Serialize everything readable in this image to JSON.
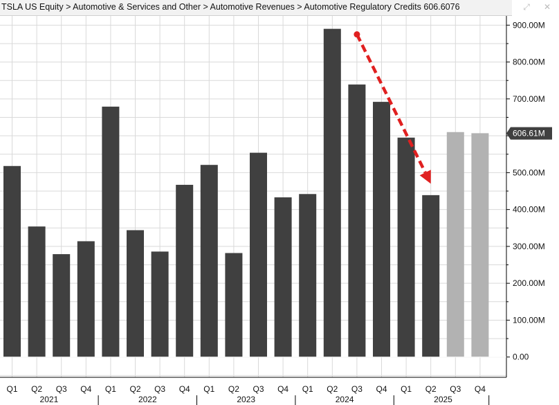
{
  "title_bar": {
    "title": "TSLA US Equity > Automotive & Services and Other > Automotive Revenues > Automotive Regulatory Credits 606.6076",
    "expand_icon": "expand-icon",
    "close_icon": "close-icon"
  },
  "last_value_label": "606.61M",
  "colors": {
    "actual_bar": "#404040",
    "estimate_bar": "#b2b2b2",
    "trend_arrow": "#e02020",
    "grid": "#d9d9d9",
    "last_value_badge": "#404040"
  },
  "chart_data": {
    "type": "bar",
    "quarter_labels": [
      "Q1",
      "Q2",
      "Q3",
      "Q4",
      "Q1",
      "Q2",
      "Q3",
      "Q4",
      "Q1",
      "Q2",
      "Q3",
      "Q4",
      "Q1",
      "Q2",
      "Q3",
      "Q4",
      "Q1",
      "Q2",
      "Q3",
      "Q4"
    ],
    "year_labels": [
      {
        "label": "2021",
        "from": 0,
        "to": 3
      },
      {
        "label": "2022",
        "from": 4,
        "to": 7
      },
      {
        "label": "2023",
        "from": 8,
        "to": 11
      },
      {
        "label": "2024",
        "from": 12,
        "to": 15
      },
      {
        "label": "2025",
        "from": 16,
        "to": 19
      }
    ],
    "series": [
      {
        "kind": "actual",
        "values": [
          518,
          354,
          279,
          314,
          679,
          344,
          286,
          467,
          521,
          282,
          554,
          433,
          442,
          890,
          739,
          692,
          595,
          439,
          null,
          null
        ]
      },
      {
        "kind": "estimate",
        "values": [
          null,
          null,
          null,
          null,
          null,
          null,
          null,
          null,
          null,
          null,
          null,
          null,
          null,
          null,
          null,
          null,
          null,
          null,
          610,
          607
        ]
      }
    ],
    "y_ticks": [
      "0.00",
      "100.00M",
      "200.00M",
      "300.00M",
      "400.00M",
      "500.00M",
      "600.00M",
      "700.00M",
      "800.00M",
      "900.00M"
    ],
    "y_tick_values": [
      0,
      100,
      200,
      300,
      400,
      500,
      600,
      700,
      800,
      900
    ],
    "ylim": [
      -55,
      925
    ],
    "last_value": 606.61,
    "trend_arrow": {
      "from_index": 14,
      "from_value": 875,
      "to_index": 17,
      "to_value": 470
    },
    "grid": true
  }
}
